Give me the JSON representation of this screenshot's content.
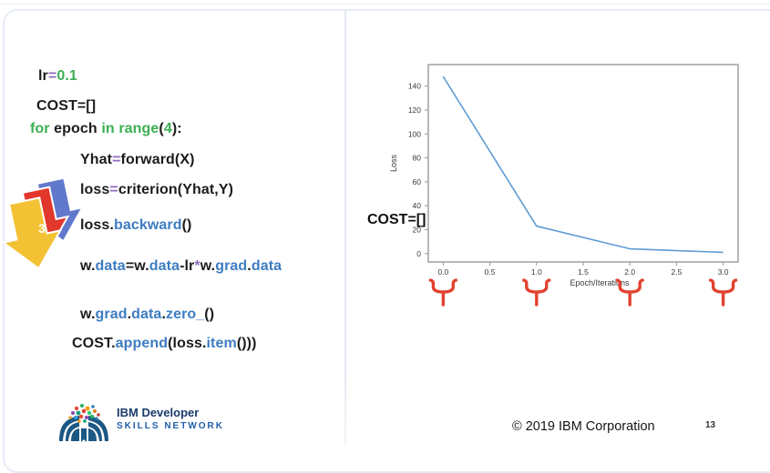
{
  "code": {
    "lines": [
      {
        "tokens": [
          {
            "t": "lr",
            "c": "k"
          },
          {
            "t": "=",
            "c": "p"
          },
          {
            "t": "0.1",
            "c": "g"
          }
        ]
      },
      {
        "tokens": [
          {
            "t": "COST=[]",
            "c": "k"
          }
        ]
      },
      {
        "tokens": [
          {
            "t": "for",
            "c": "g"
          },
          {
            "t": " epoch ",
            "c": "k"
          },
          {
            "t": "in",
            "c": "g"
          },
          {
            "t": " ",
            "c": "k"
          },
          {
            "t": "range",
            "c": "g"
          },
          {
            "t": "(",
            "c": "k"
          },
          {
            "t": "4",
            "c": "g"
          },
          {
            "t": "):",
            "c": "k"
          }
        ]
      },
      {
        "tokens": [
          {
            "t": "Yhat",
            "c": "k"
          },
          {
            "t": "=",
            "c": "p"
          },
          {
            "t": "forward(X)",
            "c": "k"
          }
        ]
      },
      {
        "tokens": [
          {
            "t": "loss",
            "c": "k"
          },
          {
            "t": "=",
            "c": "p"
          },
          {
            "t": "criterion(Yhat,Y)",
            "c": "k"
          }
        ]
      },
      {
        "tokens": [
          {
            "t": "loss.",
            "c": "k"
          },
          {
            "t": "backward",
            "c": "b"
          },
          {
            "t": "()",
            "c": "k"
          }
        ]
      },
      {
        "tokens": [
          {
            "t": "w.",
            "c": "k"
          },
          {
            "t": "data",
            "c": "b"
          },
          {
            "t": "=w.",
            "c": "k"
          },
          {
            "t": "data",
            "c": "b"
          },
          {
            "t": "-lr",
            "c": "k"
          },
          {
            "t": "*",
            "c": "p"
          },
          {
            "t": "w.",
            "c": "k"
          },
          {
            "t": "grad",
            "c": "b"
          },
          {
            "t": ".",
            "c": "k"
          },
          {
            "t": "data",
            "c": "b"
          }
        ]
      },
      {
        "tokens": [
          {
            "t": "w.",
            "c": "k"
          },
          {
            "t": "grad",
            "c": "b"
          },
          {
            "t": ".",
            "c": "k"
          },
          {
            "t": "data",
            "c": "b"
          },
          {
            "t": ".",
            "c": "k"
          },
          {
            "t": "zero_",
            "c": "b"
          },
          {
            "t": "()",
            "c": "k"
          }
        ]
      },
      {
        "tokens": [
          {
            "t": "COST.",
            "c": "k"
          },
          {
            "t": "append",
            "c": "b"
          },
          {
            "t": "(loss.",
            "c": "k"
          },
          {
            "t": "item",
            "c": "b"
          },
          {
            "t": "()))",
            "c": "k"
          }
        ]
      }
    ]
  },
  "annotation": {
    "step_number": "3",
    "arrow_colors": {
      "back": "#6079cc",
      "middle": "#e2372c",
      "front": "#f3c234"
    }
  },
  "chart_data": {
    "type": "line",
    "x": [
      0,
      1,
      2,
      3
    ],
    "y": [
      148,
      23,
      4,
      1
    ],
    "xlabel": "Epoch/Iterations",
    "ylabel": "Loss",
    "xtick_labels": [
      "0.0",
      "0.5",
      "1.0",
      "1.5",
      "2.0",
      "2.5",
      "3.0"
    ],
    "xticks": [
      0,
      0.5,
      1,
      1.5,
      2,
      2.5,
      3
    ],
    "yticks": [
      0,
      20,
      40,
      60,
      80,
      100,
      120,
      140
    ],
    "xlim": [
      -0.16,
      3.16
    ],
    "ylim": [
      -7,
      158
    ],
    "grid": false,
    "legend": "none",
    "line_color": "#5e9cd3",
    "box_color": "#999999",
    "tick_color": "#3a3a3a",
    "overlay_label": "COST=[]",
    "brace_epochs": [
      0,
      1,
      2,
      3
    ],
    "brace_color": "#e2422f"
  },
  "footer": {
    "copyright": "© 2019 IBM Corporation",
    "page": "13",
    "logo_line1": "IBM Developer",
    "logo_line2": "SKILLS NETWORK"
  }
}
